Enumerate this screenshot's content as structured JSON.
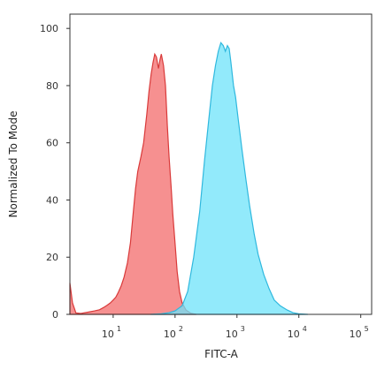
{
  "chart_data": {
    "type": "area",
    "title": "",
    "xlabel": "FITC-A",
    "ylabel": "Normalized To Mode",
    "x_scale": "log",
    "xlim": [
      2,
      150000
    ],
    "ylim": [
      0,
      105
    ],
    "x_tick_labels": [
      "10",
      "10",
      "10",
      "10",
      "10"
    ],
    "x_tick_exponents": [
      "1",
      "2",
      "3",
      "4",
      "5"
    ],
    "x_tick_values": [
      10,
      100,
      1000,
      10000,
      100000
    ],
    "y_tick_labels": [
      "0",
      "20",
      "40",
      "60",
      "80",
      "100"
    ],
    "y_tick_values": [
      0,
      20,
      40,
      60,
      80,
      100
    ],
    "grid": false,
    "legend": "none",
    "series": [
      {
        "fill": "#f47c7c",
        "stroke": "#d93a3a",
        "points": [
          [
            2,
            11
          ],
          [
            2.2,
            4
          ],
          [
            2.5,
            0.5
          ],
          [
            3,
            0.3
          ],
          [
            4,
            0.8
          ],
          [
            5,
            1.2
          ],
          [
            6,
            1.6
          ],
          [
            7,
            2.4
          ],
          [
            8,
            3.2
          ],
          [
            9,
            4
          ],
          [
            10,
            5
          ],
          [
            11,
            6
          ],
          [
            12,
            7.5
          ],
          [
            13.5,
            10
          ],
          [
            15,
            13
          ],
          [
            17,
            18
          ],
          [
            19,
            25
          ],
          [
            21,
            35
          ],
          [
            23,
            44
          ],
          [
            25,
            50
          ],
          [
            28,
            55
          ],
          [
            31,
            60
          ],
          [
            35,
            70
          ],
          [
            38,
            78
          ],
          [
            41,
            84
          ],
          [
            44,
            88
          ],
          [
            47,
            91
          ],
          [
            50,
            90
          ],
          [
            54,
            86
          ],
          [
            57,
            89
          ],
          [
            60,
            91
          ],
          [
            65,
            87
          ],
          [
            70,
            80
          ],
          [
            75,
            66
          ],
          [
            80,
            55
          ],
          [
            86,
            45
          ],
          [
            92,
            35
          ],
          [
            100,
            25
          ],
          [
            108,
            15
          ],
          [
            118,
            8
          ],
          [
            130,
            4
          ],
          [
            150,
            1.5
          ],
          [
            180,
            0.4
          ],
          [
            220,
            0
          ]
        ]
      },
      {
        "fill": "#6ee3fa",
        "stroke": "#2fb8de",
        "points": [
          [
            40,
            0
          ],
          [
            60,
            0.2
          ],
          [
            80,
            0.6
          ],
          [
            100,
            1.2
          ],
          [
            130,
            3
          ],
          [
            160,
            8
          ],
          [
            200,
            20
          ],
          [
            250,
            36
          ],
          [
            300,
            54
          ],
          [
            350,
            68
          ],
          [
            400,
            80
          ],
          [
            450,
            87
          ],
          [
            500,
            92
          ],
          [
            550,
            95
          ],
          [
            600,
            94
          ],
          [
            650,
            92
          ],
          [
            700,
            94
          ],
          [
            750,
            93
          ],
          [
            800,
            88
          ],
          [
            880,
            80
          ],
          [
            950,
            76
          ],
          [
            1050,
            68
          ],
          [
            1200,
            58
          ],
          [
            1400,
            47
          ],
          [
            1600,
            38
          ],
          [
            1900,
            28
          ],
          [
            2200,
            21
          ],
          [
            2700,
            14
          ],
          [
            3300,
            9
          ],
          [
            4000,
            5
          ],
          [
            5000,
            3
          ],
          [
            6500,
            1.5
          ],
          [
            8000,
            0.6
          ],
          [
            10000,
            0.2
          ],
          [
            14000,
            0
          ]
        ]
      }
    ]
  }
}
